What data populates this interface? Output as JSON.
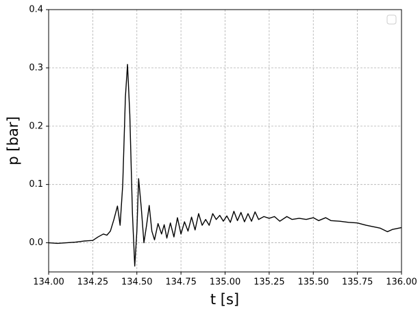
{
  "chart_data": {
    "type": "line",
    "x": [
      134.0,
      134.05,
      134.1,
      134.15,
      134.2,
      134.25,
      134.28,
      134.31,
      134.33,
      134.35,
      134.37,
      134.39,
      134.405,
      134.42,
      134.435,
      134.447,
      134.46,
      134.475,
      134.488,
      134.5,
      134.51,
      134.525,
      134.54,
      134.555,
      134.57,
      134.585,
      134.6,
      134.62,
      134.64,
      134.655,
      134.67,
      134.69,
      134.71,
      134.73,
      134.75,
      134.77,
      134.79,
      134.81,
      134.83,
      134.85,
      134.87,
      134.89,
      134.91,
      134.93,
      134.95,
      134.97,
      134.99,
      135.01,
      135.03,
      135.05,
      135.07,
      135.09,
      135.11,
      135.13,
      135.15,
      135.17,
      135.19,
      135.22,
      135.25,
      135.28,
      135.31,
      135.35,
      135.38,
      135.42,
      135.46,
      135.5,
      135.53,
      135.57,
      135.6,
      135.65,
      135.7,
      135.75,
      135.8,
      135.85,
      135.88,
      135.92,
      135.95,
      136.0
    ],
    "values": [
      0.0,
      -0.001,
      0.0,
      0.001,
      0.003,
      0.004,
      0.01,
      0.015,
      0.013,
      0.02,
      0.04,
      0.063,
      0.03,
      0.1,
      0.25,
      0.306,
      0.22,
      0.05,
      -0.04,
      0.02,
      0.11,
      0.06,
      0.0,
      0.03,
      0.064,
      0.02,
      0.005,
      0.033,
      0.015,
      0.031,
      0.008,
      0.034,
      0.01,
      0.043,
      0.015,
      0.036,
      0.02,
      0.044,
      0.022,
      0.05,
      0.03,
      0.04,
      0.03,
      0.05,
      0.04,
      0.047,
      0.037,
      0.046,
      0.035,
      0.054,
      0.038,
      0.052,
      0.036,
      0.05,
      0.037,
      0.053,
      0.04,
      0.045,
      0.042,
      0.045,
      0.037,
      0.045,
      0.04,
      0.042,
      0.04,
      0.043,
      0.038,
      0.043,
      0.038,
      0.037,
      0.035,
      0.034,
      0.03,
      0.027,
      0.025,
      0.019,
      0.023,
      0.026
    ],
    "color": "#000000",
    "xlabel": "t [s]",
    "ylabel": "p [bar]",
    "xlim": [
      134.0,
      136.0
    ],
    "xticks": [
      {
        "value": 134.0,
        "label": "134.00"
      },
      {
        "value": 134.25,
        "label": "134.25"
      },
      {
        "value": 134.5,
        "label": "134.50"
      },
      {
        "value": 134.75,
        "label": "134.75"
      },
      {
        "value": 135.0,
        "label": "135.00"
      },
      {
        "value": 135.25,
        "label": "135.25"
      },
      {
        "value": 135.5,
        "label": "135.50"
      },
      {
        "value": 135.75,
        "label": "135.75"
      },
      {
        "value": 136.0,
        "label": "136.00"
      }
    ],
    "ylim": [
      -0.05,
      0.4
    ],
    "yticks": [
      {
        "value": 0,
        "label": "0.0"
      },
      0.1,
      0.2,
      0.3,
      0.4
    ],
    "grid": true,
    "legend": "upper right"
  }
}
